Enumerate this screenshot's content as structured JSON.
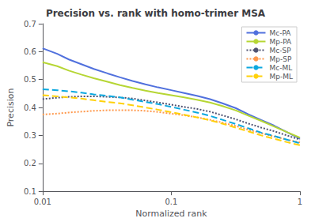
{
  "chart_data": {
    "type": "line",
    "title": "Precision vs. rank with homo-trimer MSA",
    "xlabel": "Normalized rank",
    "ylabel": "Precision",
    "log": "x",
    "xlim": [
      0.01,
      1.0
    ],
    "xticks": [
      0.01,
      0.1,
      1
    ],
    "ylim": [
      0.1,
      0.7
    ],
    "yticks": [
      0.1,
      0.2,
      0.3,
      0.4,
      0.5,
      0.6,
      0.7
    ],
    "grid": false,
    "legend": "upper right",
    "x": [
      0.01,
      0.013,
      0.016,
      0.02,
      0.025,
      0.032,
      0.04,
      0.05,
      0.063,
      0.079,
      0.1,
      0.126,
      0.158,
      0.2,
      0.25,
      0.316,
      0.4,
      0.5,
      0.63,
      0.79,
      1.0
    ],
    "series": [
      {
        "name": "Mc-PA",
        "line_style": "solid",
        "values": [
          0.612,
          0.592,
          0.572,
          0.555,
          0.538,
          0.522,
          0.508,
          0.495,
          0.483,
          0.472,
          0.462,
          0.452,
          0.442,
          0.43,
          0.415,
          0.398,
          0.375,
          0.355,
          0.335,
          0.312,
          0.288
        ]
      },
      {
        "name": "Mp-PA",
        "line_style": "solid",
        "values": [
          0.562,
          0.548,
          0.532,
          0.518,
          0.505,
          0.492,
          0.48,
          0.47,
          0.46,
          0.452,
          0.444,
          0.436,
          0.428,
          0.418,
          0.405,
          0.39,
          0.37,
          0.352,
          0.332,
          0.312,
          0.292
        ]
      },
      {
        "name": "Mc-SP",
        "line_style": "dotted",
        "values": [
          0.43,
          0.435,
          0.438,
          0.44,
          0.44,
          0.438,
          0.436,
          0.432,
          0.425,
          0.418,
          0.41,
          0.402,
          0.395,
          0.385,
          0.372,
          0.358,
          0.342,
          0.328,
          0.315,
          0.3,
          0.285
        ]
      },
      {
        "name": "Mp-SP",
        "line_style": "dotted",
        "values": [
          0.375,
          0.378,
          0.382,
          0.385,
          0.388,
          0.39,
          0.39,
          0.39,
          0.388,
          0.384,
          0.378,
          0.372,
          0.365,
          0.356,
          0.346,
          0.334,
          0.32,
          0.308,
          0.296,
          0.285,
          0.275
        ]
      },
      {
        "name": "Mc-ML",
        "line_style": "dashed",
        "values": [
          0.465,
          0.462,
          0.458,
          0.453,
          0.447,
          0.442,
          0.436,
          0.428,
          0.42,
          0.412,
          0.402,
          0.392,
          0.382,
          0.37,
          0.356,
          0.341,
          0.325,
          0.31,
          0.298,
          0.285,
          0.272
        ]
      },
      {
        "name": "Mp-ML",
        "line_style": "dashed",
        "values": [
          0.444,
          0.44,
          0.436,
          0.432,
          0.426,
          0.42,
          0.415,
          0.408,
          0.4,
          0.392,
          0.383,
          0.374,
          0.365,
          0.354,
          0.342,
          0.328,
          0.314,
          0.3,
          0.288,
          0.276,
          0.265
        ]
      }
    ]
  }
}
